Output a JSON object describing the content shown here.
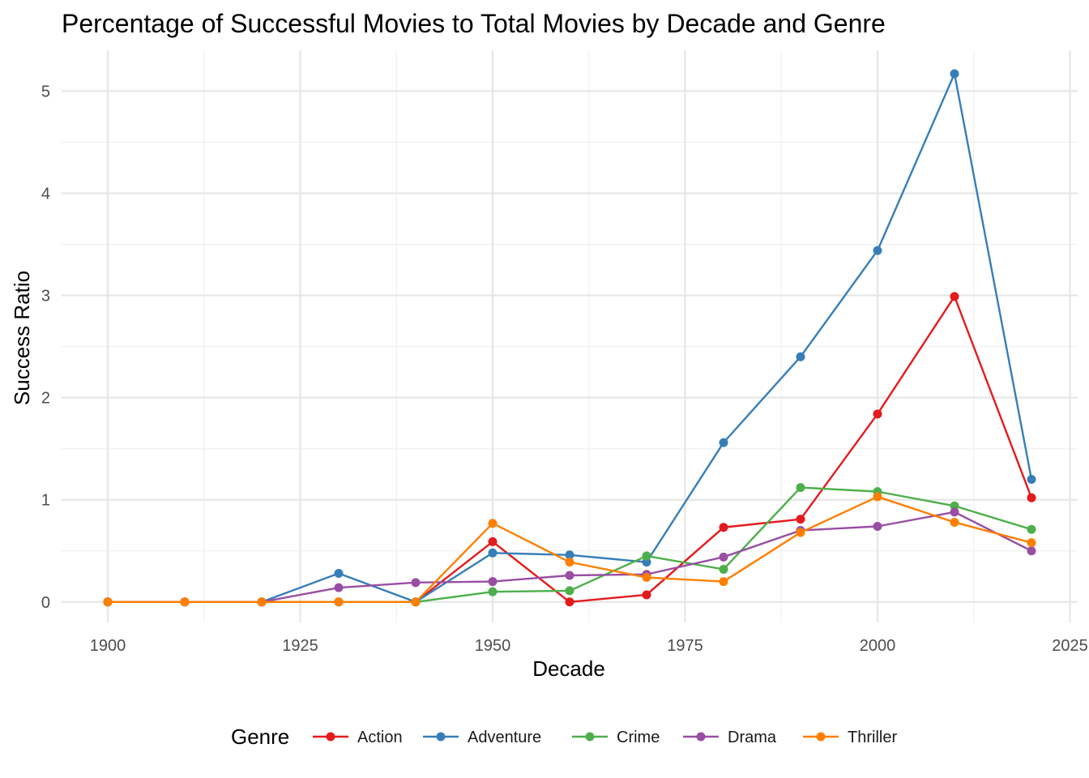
{
  "chart_data": {
    "type": "line",
    "title": "Percentage of Successful Movies to Total Movies by Decade and Genre",
    "xlabel": "Decade",
    "ylabel": "Success Ratio",
    "xlim": [
      1894,
      2026
    ],
    "ylim": [
      -0.2,
      5.4
    ],
    "x_ticks": [
      1900,
      1925,
      1950,
      1975,
      2000,
      2025
    ],
    "x_minor_ticks": [
      1912.5,
      1937.5,
      1962.5,
      1987.5,
      2012.5
    ],
    "y_ticks": [
      0,
      1,
      2,
      3,
      4,
      5
    ],
    "y_minor_ticks": [
      0.5,
      1.5,
      2.5,
      3.5,
      4.5
    ],
    "grid": true,
    "legend": {
      "title": "Genre",
      "position": "bottom"
    },
    "x": [
      1900,
      1910,
      1920,
      1930,
      1940,
      1950,
      1960,
      1970,
      1980,
      1990,
      2000,
      2010,
      2020
    ],
    "series": [
      {
        "name": "Action",
        "color": "#e41a1c",
        "values": [
          0,
          0,
          0,
          0,
          0,
          0.59,
          0,
          0.07,
          0.73,
          0.81,
          1.84,
          2.99,
          1.02
        ]
      },
      {
        "name": "Adventure",
        "color": "#377eb8",
        "values": [
          0,
          0,
          0,
          0.28,
          0,
          0.48,
          0.46,
          0.39,
          1.56,
          2.4,
          3.44,
          5.17,
          1.2
        ]
      },
      {
        "name": "Crime",
        "color": "#4daf4a",
        "values": [
          0,
          0,
          0,
          0,
          0,
          0.1,
          0.11,
          0.45,
          0.32,
          1.12,
          1.08,
          0.94,
          0.71
        ]
      },
      {
        "name": "Drama",
        "color": "#984ea3",
        "values": [
          0,
          0,
          0,
          0.14,
          0.19,
          0.2,
          0.26,
          0.27,
          0.44,
          0.7,
          0.74,
          0.88,
          0.5
        ]
      },
      {
        "name": "Thriller",
        "color": "#ff7f00",
        "values": [
          0,
          0,
          0,
          0,
          0,
          0.77,
          0.39,
          0.24,
          0.2,
          0.68,
          1.03,
          0.78,
          0.58
        ]
      }
    ]
  }
}
